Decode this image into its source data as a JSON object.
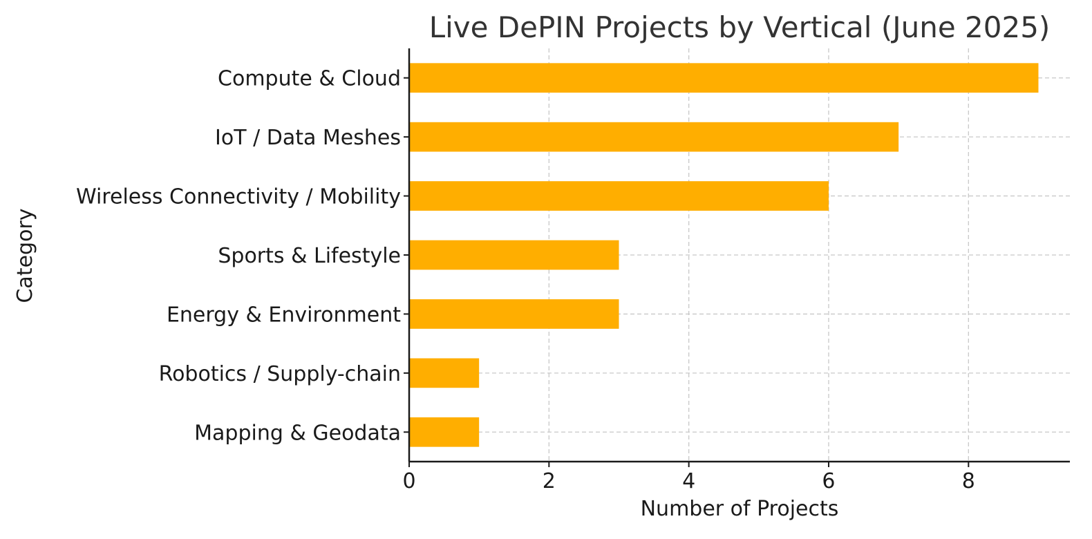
{
  "chart_data": {
    "type": "bar",
    "orientation": "horizontal",
    "title": "Live DePIN Projects by Vertical (June 2025)",
    "xlabel": "Number of Projects",
    "ylabel": "Category",
    "categories": [
      "Compute & Cloud",
      "IoT / Data Meshes",
      "Wireless Connectivity / Mobility",
      "Sports & Lifestyle",
      "Energy & Environment",
      "Robotics / Supply-chain",
      "Mapping & Geodata"
    ],
    "values": [
      9,
      7,
      6,
      3,
      3,
      1,
      1
    ],
    "xlim": [
      0,
      9.45
    ],
    "xticks": [
      0,
      2,
      4,
      6,
      8
    ],
    "xtick_labels": [
      "0",
      "2",
      "4",
      "6",
      "8"
    ],
    "grid": true,
    "bar_color": "#FFAE00"
  }
}
